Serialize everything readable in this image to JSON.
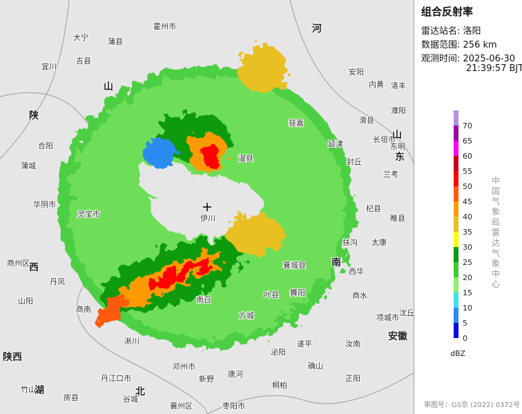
{
  "panel": {
    "title": "组合反射率",
    "station_label": "雷达站名:",
    "station": "洛阳",
    "range_label": "数据范围:",
    "range": "256 km",
    "time_label": "观测时间:",
    "date": "2025-06-30",
    "time": "21:39:57 BJT"
  },
  "legend": {
    "unit": "dBZ",
    "levels": [
      {
        "value": 0,
        "color": "#0a0ae6"
      },
      {
        "value": 5,
        "color": "#2a8cf0"
      },
      {
        "value": 10,
        "color": "#40e0f0"
      },
      {
        "value": 15,
        "color": "#90ee70"
      },
      {
        "value": 20,
        "color": "#3ccc30"
      },
      {
        "value": 25,
        "color": "#0c9a10"
      },
      {
        "value": 30,
        "color": "#ffff00"
      },
      {
        "value": 35,
        "color": "#e8c020"
      },
      {
        "value": 40,
        "color": "#ff9a00"
      },
      {
        "value": 45,
        "color": "#ff5a10"
      },
      {
        "value": 50,
        "color": "#ff0000"
      },
      {
        "value": 55,
        "color": "#c40018"
      },
      {
        "value": 60,
        "color": "#ff00f0"
      },
      {
        "value": 65,
        "color": "#9a08a8"
      },
      {
        "value": 70,
        "color": "#b890e0"
      }
    ]
  },
  "agency": "中国气象局雷达气象中心",
  "review_no": "审图号：GS京 (2022) 0372号",
  "map": {
    "labels": [
      "宜川",
      "大宁",
      "吉县",
      "蒲县",
      "霍州市",
      "合阳",
      "蒲城",
      "华阴市",
      "灵宝市",
      "商州区",
      "丹凤",
      "山阳",
      "商南",
      "淅川",
      "邓州市",
      "新野",
      "唐河",
      "南召",
      "方城",
      "叶县",
      "舞阳",
      "襄城县",
      "伊川",
      "温县",
      "获嘉",
      "延津",
      "封丘",
      "长垣市",
      "东明",
      "兰考",
      "杞县",
      "睢县",
      "太康",
      "扶沟",
      "西华",
      "商水",
      "项城市",
      "沈丘",
      "遂平",
      "确山",
      "正阳",
      "汝南",
      "泌阳",
      "桐柏",
      "枣阳市",
      "襄州区",
      "谷城",
      "丹江口市",
      "房县",
      "竹山",
      "濮阳",
      "滑县",
      "内黄",
      "安阳",
      "清丰"
    ],
    "provinces": [
      "山",
      "陕",
      "西",
      "河",
      "南",
      "山",
      "东",
      "安徽",
      "陕西",
      "湖",
      "北"
    ]
  }
}
